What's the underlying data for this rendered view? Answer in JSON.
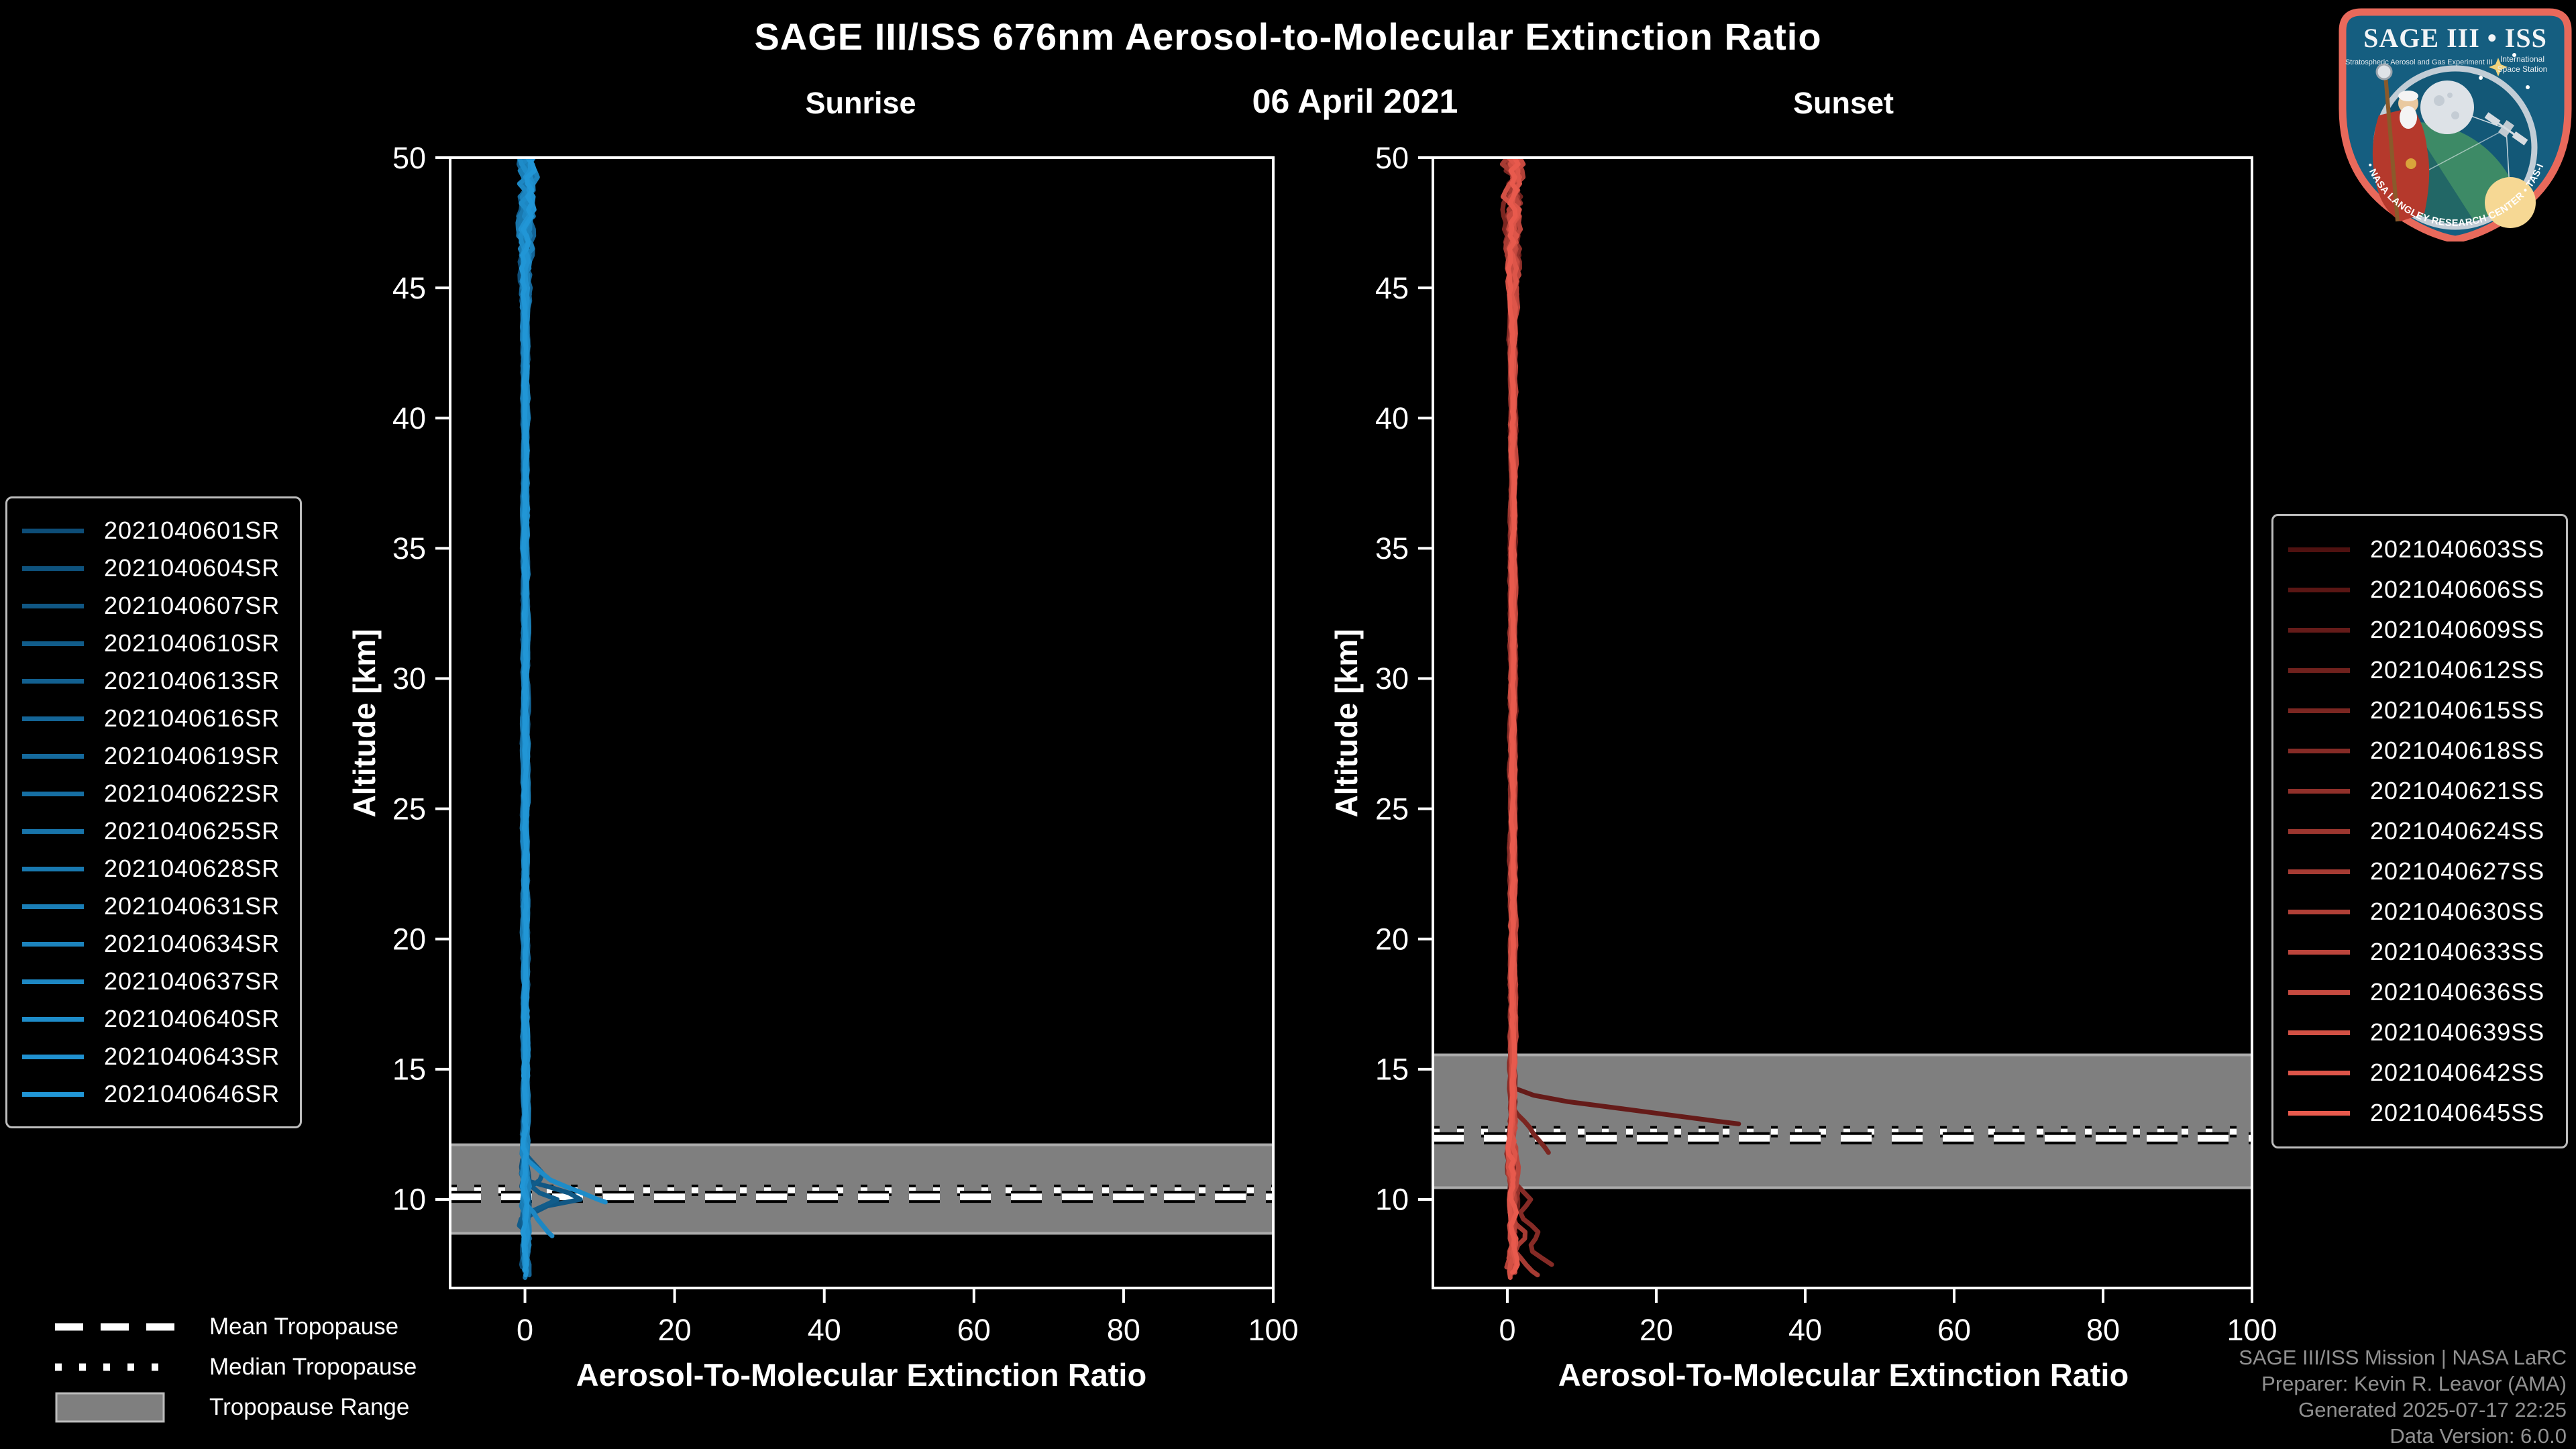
{
  "header": {
    "title": "SAGE III/ISS 676nm Aerosol-to-Molecular Extinction Ratio",
    "date": "06 April 2021"
  },
  "logo": {
    "title": "SAGE III • ISS",
    "subtitle_left": "Stratospheric Aerosol and Gas Experiment III",
    "subtitle_right_1": "International",
    "subtitle_right_2": "Space Station",
    "bottom_arc_text": "BALL • NASA LANGLEY RESEARCH CENTER • TAS-I • ESA"
  },
  "tropopause_legend": {
    "mean": "Mean Tropopause",
    "median": "Median Tropopause",
    "range": "Tropopause Range"
  },
  "footer": {
    "lines": [
      "SAGE III/ISS Mission | NASA LaRC",
      "Preparer: Kevin R. Leavor (AMA)",
      "Generated 2025-07-17 22:25",
      "Data Version: 6.0.0"
    ]
  },
  "colors": {
    "background": "#000000",
    "frame": "#ffffff",
    "tick_label": "#ffffff",
    "band": "#7f7f7f",
    "band_edge": "#ababab",
    "trop_line": "#ffffff",
    "trop_line_outline": "#000000",
    "legend_border": "#bdbdbd",
    "footer_text": "#919191",
    "sunrise_gradient": [
      "#0d4d77",
      "#2196d6"
    ],
    "sunset_gradient": [
      "#4f1110",
      "#e85a4d"
    ]
  },
  "chart_data": [
    {
      "id": "sunrise",
      "type": "line",
      "title": "Sunrise",
      "xlabel": "Aerosol-To-Molecular Extinction Ratio",
      "ylabel": "Altitude [km]",
      "xlim": [
        -10,
        100
      ],
      "ylim": [
        6.6,
        50
      ],
      "xticks": [
        0,
        20,
        40,
        60,
        80,
        100
      ],
      "yticks": [
        10,
        15,
        20,
        25,
        30,
        35,
        40,
        45,
        50
      ],
      "grid": false,
      "legend_position": "outside-left",
      "tropopause": {
        "mean_km": 10.1,
        "median_km": 10.35,
        "range_km": [
          8.7,
          12.1
        ]
      },
      "profile_note": "Extinction ratio stays near 0-2 from 50 km down to ~12 km; excursions up to ~11 occur near the 10 km tropopause; measurement noise widens above ~44 km",
      "series": [
        {
          "label": "2021040601SR",
          "color": "#0d4d77",
          "seed": 101,
          "x_offset": -0.1,
          "alt_bottom": 7.4,
          "spur": null
        },
        {
          "label": "2021040604SR",
          "color": "#0e527d",
          "seed": 108,
          "x_offset": 0.2,
          "alt_bottom": 7.2,
          "spur": null
        },
        {
          "label": "2021040607SR",
          "color": "#105784",
          "seed": 115,
          "x_offset": -0.2,
          "alt_bottom": 9.3,
          "spur": [
            [
              10.7,
              0.5
            ],
            [
              10.05,
              8.3
            ],
            [
              9.7,
              2.0
            ],
            [
              9.3,
              0.3
            ]
          ]
        },
        {
          "label": "2021040610SR",
          "color": "#115c8a",
          "seed": 122,
          "x_offset": 0.1,
          "alt_bottom": 8.2,
          "spur": [
            [
              11.7,
              0.3
            ],
            [
              10.9,
              2.6
            ],
            [
              10.4,
              0.6
            ],
            [
              10.0,
              4.2
            ],
            [
              9.5,
              0.6
            ],
            [
              9.1,
              -1.2
            ],
            [
              8.6,
              0.8
            ],
            [
              8.2,
              -0.2
            ]
          ]
        },
        {
          "label": "2021040613SR",
          "color": "#126090",
          "seed": 129,
          "x_offset": 0.0,
          "alt_bottom": 7.5,
          "spur": null
        },
        {
          "label": "2021040616SR",
          "color": "#146597",
          "seed": 136,
          "x_offset": 0.3,
          "alt_bottom": 7.1,
          "spur": null
        },
        {
          "label": "2021040619SR",
          "color": "#156a9d",
          "seed": 143,
          "x_offset": -0.1,
          "alt_bottom": 7.6,
          "spur": null
        },
        {
          "label": "2021040622SR",
          "color": "#166fa3",
          "seed": 150,
          "x_offset": 0.2,
          "alt_bottom": 7.3,
          "spur": null
        },
        {
          "label": "2021040625SR",
          "color": "#1874aa",
          "seed": 157,
          "x_offset": 0.0,
          "alt_bottom": 7.0,
          "spur": null
        },
        {
          "label": "2021040628SR",
          "color": "#1979b0",
          "seed": 164,
          "x_offset": -0.2,
          "alt_bottom": 7.5,
          "spur": null
        },
        {
          "label": "2021040631SR",
          "color": "#1a7eb6",
          "seed": 171,
          "x_offset": 0.1,
          "alt_bottom": 7.2,
          "spur": null
        },
        {
          "label": "2021040634SR",
          "color": "#1c83bd",
          "seed": 178,
          "x_offset": 0.3,
          "alt_bottom": 7.4,
          "spur": null
        },
        {
          "label": "2021040637SR",
          "color": "#1d87c3",
          "seed": 185,
          "x_offset": -0.1,
          "alt_bottom": 8.6,
          "spur": [
            [
              9.8,
              0.3
            ],
            [
              9.2,
              1.8
            ],
            [
              8.6,
              3.5
            ]
          ]
        },
        {
          "label": "2021040640SR",
          "color": "#1e8cc9",
          "seed": 192,
          "x_offset": 0.1,
          "alt_bottom": 9.9,
          "spur": [
            [
              11.5,
              0.4
            ],
            [
              10.8,
              3.0
            ],
            [
              9.9,
              10.7
            ]
          ]
        },
        {
          "label": "2021040643SR",
          "color": "#2091d0",
          "seed": 199,
          "x_offset": 0.2,
          "alt_bottom": 7.1,
          "spur": null
        },
        {
          "label": "2021040646SR",
          "color": "#2196d6",
          "seed": 206,
          "x_offset": 0.0,
          "alt_bottom": 7.3,
          "spur": null
        }
      ]
    },
    {
      "id": "sunset",
      "type": "line",
      "title": "Sunset",
      "xlabel": "Aerosol-To-Molecular Extinction Ratio",
      "ylabel": "Altitude [km]",
      "xlim": [
        -10,
        100
      ],
      "ylim": [
        6.6,
        50
      ],
      "xticks": [
        0,
        20,
        40,
        60,
        80,
        100
      ],
      "yticks": [
        10,
        15,
        20,
        25,
        30,
        35,
        40,
        45,
        50
      ],
      "grid": false,
      "legend_position": "outside-right",
      "tropopause": {
        "mean_km": 12.35,
        "median_km": 12.6,
        "range_km": [
          10.45,
          15.55
        ]
      },
      "profile_note": "Extinction ratio stays near 0-2 from 50 km down to ~14 km; one dark-red profile reaches ~31 near 13 km; several profiles reach 3-6 below 12 km; noise widens above ~44 km",
      "series": [
        {
          "label": "2021040603SS",
          "color": "#4f1110",
          "seed": 501,
          "x_offset": 0.5,
          "alt_bottom": 7.4,
          "spur": null
        },
        {
          "label": "2021040606SS",
          "color": "#5a1614",
          "seed": 514,
          "x_offset": 0.8,
          "alt_bottom": 7.2,
          "spur": null
        },
        {
          "label": "2021040609SS",
          "color": "#651b19",
          "seed": 527,
          "x_offset": 0.6,
          "alt_bottom": 12.9,
          "spur": [
            [
              14.3,
              0.8
            ],
            [
              13.9,
              4.3
            ],
            [
              12.9,
              31.0
            ]
          ]
        },
        {
          "label": "2021040612SS",
          "color": "#70211d",
          "seed": 540,
          "x_offset": 1.0,
          "alt_bottom": 7.3,
          "spur": null
        },
        {
          "label": "2021040615SS",
          "color": "#7b2621",
          "seed": 553,
          "x_offset": 0.7,
          "alt_bottom": 11.8,
          "spur": [
            [
              13.4,
              0.9
            ],
            [
              12.9,
              2.6
            ],
            [
              12.2,
              4.3
            ],
            [
              11.8,
              5.6
            ]
          ]
        },
        {
          "label": "2021040618SS",
          "color": "#862b26",
          "seed": 566,
          "x_offset": 0.4,
          "alt_bottom": 7.5,
          "spur": [
            [
              10.6,
              1.0
            ],
            [
              10.0,
              3.1
            ],
            [
              9.4,
              1.4
            ],
            [
              8.8,
              4.3
            ],
            [
              8.1,
              3.0
            ],
            [
              7.5,
              5.9
            ]
          ]
        },
        {
          "label": "2021040621SS",
          "color": "#91302a",
          "seed": 579,
          "x_offset": 0.9,
          "alt_bottom": 7.1,
          "spur": null
        },
        {
          "label": "2021040624SS",
          "color": "#9c362f",
          "seed": 592,
          "x_offset": 0.6,
          "alt_bottom": 7.6,
          "spur": null
        },
        {
          "label": "2021040627SS",
          "color": "#a63b33",
          "seed": 605,
          "x_offset": 0.8,
          "alt_bottom": 7.1,
          "spur": [
            [
              9.2,
              0.8
            ],
            [
              8.6,
              2.8
            ],
            [
              8.1,
              0.9
            ],
            [
              7.5,
              2.4
            ],
            [
              7.1,
              4.0
            ]
          ]
        },
        {
          "label": "2021040630SS",
          "color": "#b14037",
          "seed": 618,
          "x_offset": 0.5,
          "alt_bottom": 7.4,
          "spur": null
        },
        {
          "label": "2021040633SS",
          "color": "#bc453c",
          "seed": 631,
          "x_offset": 1.0,
          "alt_bottom": 7.2,
          "spur": null
        },
        {
          "label": "2021040636SS",
          "color": "#c74a40",
          "seed": 644,
          "x_offset": 0.7,
          "alt_bottom": 7.5,
          "spur": null
        },
        {
          "label": "2021040639SS",
          "color": "#d25044",
          "seed": 657,
          "x_offset": 0.6,
          "alt_bottom": 7.0,
          "spur": null
        },
        {
          "label": "2021040642SS",
          "color": "#dd5549",
          "seed": 670,
          "x_offset": 0.9,
          "alt_bottom": 7.3,
          "spur": null
        },
        {
          "label": "2021040645SS",
          "color": "#e85a4d",
          "seed": 683,
          "x_offset": 0.7,
          "alt_bottom": 7.2,
          "spur": null
        }
      ]
    }
  ]
}
